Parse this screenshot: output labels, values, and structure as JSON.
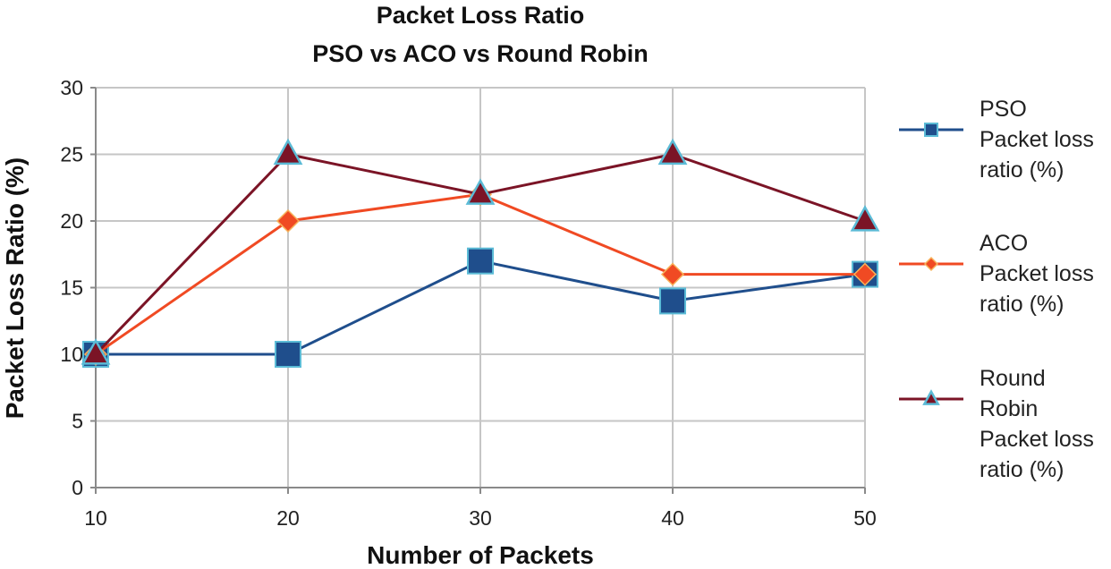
{
  "chart_data": {
    "type": "line",
    "title": [
      "Packet Loss Ratio",
      "PSO vs ACO vs Round Robin"
    ],
    "xlabel": "Number of Packets",
    "ylabel": "Packet Loss Ratio (%)",
    "x": [
      10,
      20,
      30,
      40,
      50
    ],
    "x_tick_labels": [
      "10",
      "20",
      "30",
      "40",
      "50"
    ],
    "ylim": [
      0,
      30
    ],
    "y_ticks": [
      0,
      5,
      10,
      15,
      20,
      25,
      30
    ],
    "y_tick_labels": [
      "0",
      "5",
      "10",
      "15",
      "20",
      "25",
      "30"
    ],
    "grid": true,
    "legend_position": "right",
    "series": [
      {
        "name": "PSO Packet loss ratio (%)",
        "legend_lines": [
          "PSO",
          "Packet loss",
          "ratio (%)"
        ],
        "values": [
          10,
          10,
          17,
          14,
          16
        ],
        "color": "#1f4e8c",
        "marker": "square"
      },
      {
        "name": "ACO Packet loss ratio (%)",
        "legend_lines": [
          "ACO",
          "Packet loss",
          "ratio (%)"
        ],
        "values": [
          10,
          20,
          22,
          16,
          16
        ],
        "color": "#f04a23",
        "marker": "diamond"
      },
      {
        "name": "Round Robin Packet loss ratio (%)",
        "legend_lines": [
          "Round",
          "Robin",
          "Packet loss",
          "ratio (%)"
        ],
        "values": [
          10,
          25,
          22,
          25,
          20
        ],
        "color": "#7b1426",
        "marker": "triangle"
      }
    ]
  },
  "colors": {
    "grid": "#c6c6c6",
    "axis": "#8a8a8a",
    "marker_outline": "#5bbbd6"
  }
}
